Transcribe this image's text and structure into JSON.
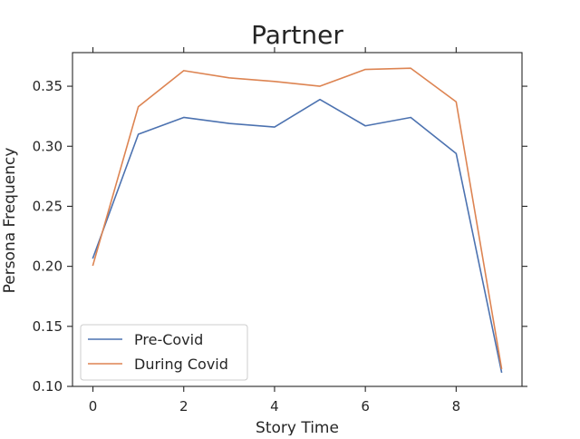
{
  "chart_data": {
    "type": "line",
    "title": "Partner",
    "xlabel": "Story Time",
    "ylabel": "Persona Frequency",
    "x": [
      0,
      1,
      2,
      3,
      4,
      5,
      6,
      7,
      8,
      9
    ],
    "series": [
      {
        "name": "Pre-Covid",
        "color": "#4c72b0",
        "values": [
          0.207,
          0.31,
          0.324,
          0.319,
          0.316,
          0.339,
          0.317,
          0.324,
          0.294,
          0.112
        ]
      },
      {
        "name": "During Covid",
        "color": "#dd8452",
        "values": [
          0.201,
          0.333,
          0.363,
          0.357,
          0.354,
          0.35,
          0.364,
          0.365,
          0.337,
          0.115
        ]
      }
    ],
    "xlim": [
      -0.45,
      9.45
    ],
    "ylim": [
      0.1,
      0.378
    ],
    "xticks": [
      0,
      2,
      4,
      6,
      8
    ],
    "yticks": [
      0.1,
      0.15,
      0.2,
      0.25,
      0.3,
      0.35
    ],
    "ytick_labels": [
      "0.10",
      "0.15",
      "0.20",
      "0.25",
      "0.30",
      "0.35"
    ],
    "grid": false,
    "legend_position": "lower-left"
  }
}
